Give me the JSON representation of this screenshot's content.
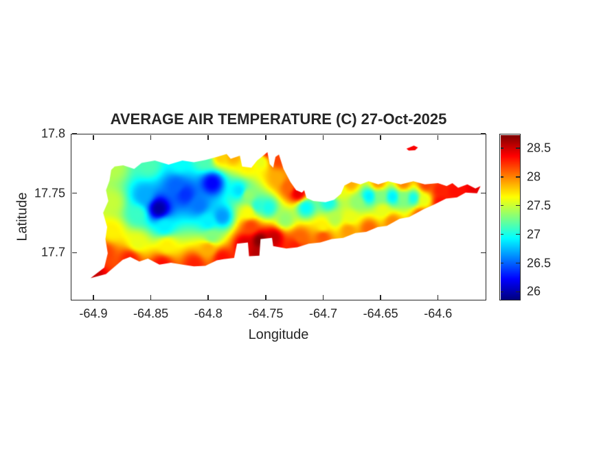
{
  "background_color": "#ffffff",
  "axis_color": "#262626",
  "chart_data": {
    "type": "heatmap",
    "subtype": "filled_contour_map_of_island",
    "title": "AVERAGE AIR TEMPERATURE (C) 27-Oct-2025",
    "xlabel": "Longitude",
    "ylabel": "Latitude",
    "xlim": [
      -64.9197,
      -64.558
    ],
    "ylim": [
      17.6598,
      17.8
    ],
    "grid": false,
    "xticks": [
      -64.9,
      -64.85,
      -64.8,
      -64.75,
      -64.7,
      -64.65,
      -64.6
    ],
    "xtick_labels": [
      "-64.9",
      "-64.85",
      "-64.8",
      "-64.75",
      "-64.7",
      "-64.65",
      "-64.6"
    ],
    "yticks": [
      17.8,
      17.75,
      17.7
    ],
    "ytick_labels": [
      "17.8",
      "17.75",
      "17.7"
    ],
    "colorbar": {
      "position": "right",
      "colormap": "jet",
      "min": 25.85,
      "max": 28.75,
      "tick_values": [
        28.5,
        28,
        27.5,
        27,
        26.5,
        26
      ],
      "tick_labels": [
        "28.5",
        "28",
        "27.5",
        "27",
        "26.5",
        "26"
      ]
    },
    "interpolation": {
      "method": "idw",
      "power": 3.2
    },
    "temperature_points": [
      [
        -64.843,
        17.737,
        25.95
      ],
      [
        -64.82,
        17.749,
        26.35
      ],
      [
        -64.7965,
        17.7585,
        26.2
      ],
      [
        -64.828,
        17.756,
        26.5
      ],
      [
        -64.856,
        17.748,
        26.7
      ],
      [
        -64.808,
        17.74,
        26.55
      ],
      [
        -64.773,
        17.752,
        26.85
      ],
      [
        -64.838,
        17.722,
        26.9
      ],
      [
        -64.862,
        17.732,
        27.1
      ],
      [
        -64.884,
        17.742,
        27.5
      ],
      [
        -64.8835,
        17.7715,
        27.45
      ],
      [
        -64.852,
        17.7735,
        27.15
      ],
      [
        -64.825,
        17.7755,
        26.95
      ],
      [
        -64.803,
        17.7775,
        27.15
      ],
      [
        -64.7895,
        17.781,
        27.8
      ],
      [
        -64.778,
        17.7815,
        27.9
      ],
      [
        -64.884,
        17.718,
        27.7
      ],
      [
        -64.89,
        17.7,
        28.2
      ],
      [
        -64.9005,
        17.6805,
        28.55
      ],
      [
        -64.868,
        17.695,
        28.3
      ],
      [
        -64.84,
        17.69,
        28.35
      ],
      [
        -64.812,
        17.69,
        28.3
      ],
      [
        -64.836,
        17.706,
        27.7
      ],
      [
        -64.862,
        17.708,
        27.6
      ],
      [
        -64.8,
        17.726,
        26.9
      ],
      [
        -64.788,
        17.7305,
        26.65
      ],
      [
        -64.797,
        17.7135,
        27.3
      ],
      [
        -64.8,
        17.7035,
        27.9
      ],
      [
        -64.788,
        17.6955,
        28.35
      ],
      [
        -64.755,
        17.71,
        28.75
      ],
      [
        -64.743,
        17.7125,
        28.55
      ],
      [
        -64.768,
        17.707,
        28.5
      ],
      [
        -64.756,
        17.699,
        28.6
      ],
      [
        -64.763,
        17.722,
        28.2
      ],
      [
        -64.765,
        17.734,
        27.65
      ],
      [
        -64.7655,
        17.7485,
        27.35
      ],
      [
        -64.757,
        17.7395,
        27.05
      ],
      [
        -64.748,
        17.738,
        27.0
      ],
      [
        -64.766,
        17.7735,
        27.7
      ],
      [
        -64.7485,
        17.7855,
        28.3
      ],
      [
        -64.754,
        17.7765,
        27.6
      ],
      [
        -64.739,
        17.778,
        28.2
      ],
      [
        -64.74,
        17.7625,
        27.9
      ],
      [
        -64.73,
        17.7555,
        28.1
      ],
      [
        -64.722,
        17.75,
        28.45
      ],
      [
        -64.715,
        17.738,
        26.95
      ],
      [
        -64.695,
        17.742,
        27.0
      ],
      [
        -64.733,
        17.728,
        27.35
      ],
      [
        -64.725,
        17.7055,
        28.3
      ],
      [
        -64.72,
        17.7125,
        28.1
      ],
      [
        -64.7,
        17.7135,
        28.15
      ],
      [
        -64.7,
        17.722,
        27.7
      ],
      [
        -64.69,
        17.7285,
        27.45
      ],
      [
        -64.678,
        17.7185,
        27.95
      ],
      [
        -64.66,
        17.7475,
        26.9
      ],
      [
        -64.6395,
        17.747,
        26.9
      ],
      [
        -64.6215,
        17.746,
        27.0
      ],
      [
        -64.65,
        17.7475,
        27.3
      ],
      [
        -64.63,
        17.7465,
        27.3
      ],
      [
        -64.67,
        17.742,
        27.35
      ],
      [
        -64.648,
        17.7355,
        27.6
      ],
      [
        -64.676,
        17.7585,
        27.9
      ],
      [
        -64.652,
        17.7585,
        27.95
      ],
      [
        -64.63,
        17.758,
        28.0
      ],
      [
        -64.61,
        17.7575,
        28.2
      ],
      [
        -64.686,
        17.752,
        27.6
      ],
      [
        -64.66,
        17.7205,
        28.1
      ],
      [
        -64.64,
        17.726,
        28.0
      ],
      [
        -64.676,
        17.7295,
        27.6
      ],
      [
        -64.615,
        17.7315,
        28.15
      ],
      [
        -64.598,
        17.7425,
        28.35
      ],
      [
        -64.598,
        17.7525,
        28.3
      ],
      [
        -64.585,
        17.752,
        28.35
      ],
      [
        -64.5655,
        17.7545,
        28.45
      ],
      [
        -64.612,
        17.7445,
        27.6
      ],
      [
        -64.6225,
        17.788,
        28.4
      ]
    ],
    "island_outline": [
      [
        -64.9025,
        17.6785
      ],
      [
        -64.8905,
        17.6875
      ],
      [
        -64.8875,
        17.6995
      ],
      [
        -64.8895,
        17.7115
      ],
      [
        -64.888,
        17.7215
      ],
      [
        -64.8915,
        17.7335
      ],
      [
        -64.887,
        17.7435
      ],
      [
        -64.889,
        17.7525
      ],
      [
        -64.886,
        17.7605
      ],
      [
        -64.8845,
        17.7695
      ],
      [
        -64.8815,
        17.7725
      ],
      [
        -64.874,
        17.7735
      ],
      [
        -64.8645,
        17.7705
      ],
      [
        -64.858,
        17.7755
      ],
      [
        -64.8465,
        17.7775
      ],
      [
        -64.8345,
        17.774
      ],
      [
        -64.8225,
        17.7775
      ],
      [
        -64.8125,
        17.776
      ],
      [
        -64.8025,
        17.778
      ],
      [
        -64.7925,
        17.7805
      ],
      [
        -64.784,
        17.783
      ],
      [
        -64.7805,
        17.779
      ],
      [
        -64.7725,
        17.7815
      ],
      [
        -64.7705,
        17.7725
      ],
      [
        -64.7625,
        17.7715
      ],
      [
        -64.7575,
        17.7775
      ],
      [
        -64.7535,
        17.7805
      ],
      [
        -64.7485,
        17.7845
      ],
      [
        -64.7465,
        17.7745
      ],
      [
        -64.7435,
        17.7715
      ],
      [
        -64.7415,
        17.7805
      ],
      [
        -64.7385,
        17.7825
      ],
      [
        -64.7345,
        17.7705
      ],
      [
        -64.7285,
        17.7595
      ],
      [
        -64.7235,
        17.7525
      ],
      [
        -64.7185,
        17.7505
      ],
      [
        -64.7165,
        17.7525
      ],
      [
        -64.7145,
        17.746
      ],
      [
        -64.7085,
        17.7435
      ],
      [
        -64.698,
        17.7425
      ],
      [
        -64.6905,
        17.7445
      ],
      [
        -64.6845,
        17.7495
      ],
      [
        -64.6815,
        17.7565
      ],
      [
        -64.6755,
        17.7595
      ],
      [
        -64.6675,
        17.7575
      ],
      [
        -64.6605,
        17.76
      ],
      [
        -64.652,
        17.7575
      ],
      [
        -64.6435,
        17.76
      ],
      [
        -64.6325,
        17.7575
      ],
      [
        -64.6215,
        17.76
      ],
      [
        -64.6115,
        17.7575
      ],
      [
        -64.6,
        17.7585
      ],
      [
        -64.5925,
        17.756
      ],
      [
        -64.5875,
        17.7585
      ],
      [
        -64.5825,
        17.7545
      ],
      [
        -64.5745,
        17.7575
      ],
      [
        -64.5675,
        17.754
      ],
      [
        -64.563,
        17.756
      ],
      [
        -64.566,
        17.75
      ],
      [
        -64.576,
        17.7505
      ],
      [
        -64.5835,
        17.7465
      ],
      [
        -64.593,
        17.7455
      ],
      [
        -64.6035,
        17.7405
      ],
      [
        -64.6125,
        17.7365
      ],
      [
        -64.625,
        17.73
      ],
      [
        -64.6335,
        17.7285
      ],
      [
        -64.6445,
        17.7225
      ],
      [
        -64.6525,
        17.7215
      ],
      [
        -64.6625,
        17.7175
      ],
      [
        -64.672,
        17.7165
      ],
      [
        -64.6825,
        17.7125
      ],
      [
        -64.6925,
        17.7115
      ],
      [
        -64.7025,
        17.7085
      ],
      [
        -64.7125,
        17.7075
      ],
      [
        -64.7225,
        17.7045
      ],
      [
        -64.732,
        17.7035
      ],
      [
        -64.7435,
        17.7055
      ],
      [
        -64.7445,
        17.7125
      ],
      [
        -64.7545,
        17.7115
      ],
      [
        -64.7555,
        17.6975
      ],
      [
        -64.7645,
        17.697
      ],
      [
        -64.7655,
        17.7085
      ],
      [
        -64.775,
        17.7075
      ],
      [
        -64.7775,
        17.6955
      ],
      [
        -64.7865,
        17.6945
      ],
      [
        -64.7925,
        17.6935
      ],
      [
        -64.8025,
        17.689
      ],
      [
        -64.8125,
        17.6885
      ],
      [
        -64.8225,
        17.69
      ],
      [
        -64.8325,
        17.6915
      ],
      [
        -64.8425,
        17.69
      ],
      [
        -64.8525,
        17.695
      ],
      [
        -64.86,
        17.6925
      ],
      [
        -64.868,
        17.6965
      ],
      [
        -64.8745,
        17.694
      ],
      [
        -64.889,
        17.682
      ]
    ],
    "islets": [
      [
        [
          -64.6275,
          17.7875
        ],
        [
          -64.621,
          17.79
        ],
        [
          -64.6175,
          17.7885
        ],
        [
          -64.62,
          17.7862
        ],
        [
          -64.6255,
          17.7858
        ]
      ]
    ]
  }
}
